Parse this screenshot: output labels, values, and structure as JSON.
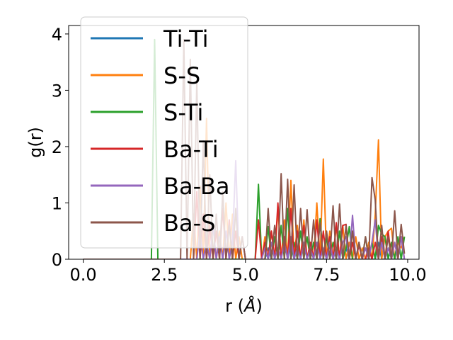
{
  "chart_data": {
    "type": "line",
    "title": "",
    "xlabel_prefix": "r (",
    "xlabel_symbol": "Å",
    "xlabel_suffix": ")",
    "ylabel": "g(r)",
    "xlim": [
      -0.45,
      10.35
    ],
    "ylim": [
      0,
      4.15
    ],
    "xticks": [
      0,
      2.5,
      5,
      7.5,
      10
    ],
    "xtick_labels": [
      "0.0",
      "2.5",
      "5.0",
      "7.5",
      "10.0"
    ],
    "yticks": [
      0,
      1,
      2,
      3,
      4
    ],
    "ytick_labels": [
      "0",
      "1",
      "2",
      "3",
      "4"
    ],
    "grid": false,
    "legend_position": "upper-left",
    "series": [
      {
        "name": "Ti-Ti",
        "color": "#1f77b4",
        "x": [
          0,
          5.4,
          5.6,
          5.7,
          5.8,
          6.3,
          6.4,
          6.5,
          7.5,
          7.6,
          7.7,
          8.0,
          8.1,
          8.2,
          9.0,
          9.1,
          9.2,
          9.9
        ],
        "y": [
          0,
          0,
          0,
          0.2,
          0,
          0,
          0.3,
          0,
          0,
          0.25,
          0,
          0,
          0.2,
          0,
          0,
          0.3,
          0,
          0
        ]
      },
      {
        "name": "S-S",
        "color": "#ff7f0e",
        "x": [
          0,
          3.3,
          3.4,
          3.5,
          3.6,
          3.7,
          3.8,
          3.9,
          4.0,
          4.1,
          4.2,
          4.3,
          4.4,
          4.5,
          4.6,
          4.7,
          4.8,
          4.9,
          5.0,
          5.5,
          5.6,
          5.7,
          5.8,
          5.9,
          6.0,
          6.1,
          6.2,
          6.3,
          6.4,
          6.5,
          6.6,
          6.7,
          6.8,
          6.9,
          7.0,
          7.1,
          7.2,
          7.3,
          7.4,
          7.5,
          7.6,
          7.7,
          7.8,
          7.9,
          8.0,
          8.1,
          8.2,
          8.3,
          8.4,
          8.5,
          8.6,
          8.7,
          8.8,
          8.9,
          9.0,
          9.1,
          9.2,
          9.3,
          9.4,
          9.5,
          9.6,
          9.7,
          9.8,
          9.9
        ],
        "y": [
          0,
          0,
          0.8,
          0,
          1.3,
          0,
          2.5,
          0,
          0.6,
          0,
          0.5,
          0,
          1.0,
          0,
          0.8,
          0,
          0.4,
          0,
          0,
          0,
          0.4,
          0,
          0.5,
          0,
          0.9,
          0,
          0.7,
          0,
          1.4,
          0,
          0.6,
          0,
          0.7,
          0,
          0.3,
          0,
          1.0,
          0,
          1.78,
          0,
          0.5,
          0,
          0.6,
          0,
          0.6,
          0,
          0.3,
          0,
          0.4,
          0,
          0.2,
          0,
          0.3,
          0,
          0.8,
          2.12,
          0,
          0.4,
          0.5,
          0.55,
          0,
          0.3,
          0.2,
          0.4
        ]
      },
      {
        "name": "S-Ti",
        "color": "#2ca02c",
        "x": [
          0,
          2.1,
          2.2,
          2.3,
          2.4,
          5.3,
          5.4,
          5.5,
          5.6,
          5.7,
          5.8,
          5.9,
          6.0,
          6.1,
          6.2,
          6.3,
          6.4,
          6.5,
          6.6,
          6.7,
          6.8,
          6.9,
          7.0,
          7.1,
          7.2,
          7.3,
          7.4,
          7.5,
          7.6,
          7.7,
          7.8,
          7.9,
          8.0,
          8.1,
          8.2,
          8.3,
          8.4,
          8.5,
          8.6,
          8.7,
          8.8,
          8.9,
          9.0,
          9.1,
          9.2,
          9.3,
          9.4,
          9.5,
          9.6,
          9.7,
          9.8,
          9.9
        ],
        "y": [
          0,
          0,
          3.9,
          0,
          0,
          0,
          1.33,
          0,
          0,
          0.58,
          0,
          0.4,
          0,
          0.6,
          0,
          0.9,
          0,
          0.3,
          0,
          0.5,
          0,
          0.4,
          0,
          0.3,
          0,
          0.72,
          0,
          0.4,
          0,
          0.3,
          0,
          0.5,
          0,
          0.2,
          0.58,
          0,
          0,
          0.3,
          0,
          0.4,
          0,
          0.3,
          0,
          0.6,
          0.45,
          0.4,
          0,
          0.3,
          0,
          0.4,
          0,
          0.4
        ]
      },
      {
        "name": "Ba-Ti",
        "color": "#d62728",
        "x": [
          0,
          3.4,
          3.5,
          3.6,
          3.7,
          3.8,
          3.9,
          4.0,
          4.1,
          4.2,
          4.3,
          4.4,
          4.5,
          4.6,
          4.7,
          4.8,
          4.9,
          5.0,
          5.3,
          5.4,
          5.5,
          5.6,
          5.7,
          5.8,
          5.9,
          6.0,
          6.1,
          6.2,
          6.3,
          6.4,
          6.5,
          6.6,
          6.7,
          6.8,
          6.9,
          7.0,
          7.1,
          7.2,
          7.3,
          7.4,
          7.5,
          7.6,
          7.7,
          7.8,
          7.9,
          8.0,
          8.1,
          8.2,
          8.3,
          8.4,
          8.5,
          8.6,
          8.7,
          8.8,
          8.9,
          9.0,
          9.1,
          9.2,
          9.3,
          9.4,
          9.5,
          9.6,
          9.7,
          9.8,
          9.9
        ],
        "y": [
          0,
          0,
          1.2,
          0,
          0.8,
          0,
          0.6,
          0,
          0.5,
          0,
          0.9,
          0,
          0.7,
          0,
          0.5,
          0,
          0.4,
          0,
          0,
          0.7,
          0,
          0.3,
          0,
          0.5,
          0,
          1.0,
          0,
          0.4,
          0,
          0.9,
          0,
          0.5,
          0,
          0.6,
          0,
          0.3,
          0,
          0.7,
          0,
          0.5,
          0,
          0.4,
          0,
          0.65,
          0,
          0.6,
          0.62,
          0,
          0.3,
          0,
          0.25,
          0,
          0,
          0.2,
          0,
          0.3,
          0,
          0.4,
          0,
          0.5,
          0,
          0.3,
          0,
          0.4,
          0
        ]
      },
      {
        "name": "Ba-Ba",
        "color": "#9467bd",
        "x": [
          0,
          3.5,
          3.6,
          3.7,
          3.8,
          3.9,
          4.0,
          4.1,
          4.2,
          4.3,
          4.4,
          4.5,
          4.6,
          4.7,
          4.8,
          4.9,
          5.0,
          5.5,
          5.6,
          5.7,
          5.8,
          5.9,
          6.0,
          6.1,
          6.2,
          6.3,
          6.4,
          6.5,
          6.6,
          6.7,
          6.8,
          6.9,
          7.0,
          7.1,
          7.2,
          7.3,
          7.4,
          7.5,
          7.6,
          7.7,
          7.8,
          7.9,
          8.0,
          8.1,
          8.2,
          8.3,
          8.4,
          8.5,
          8.6,
          8.7,
          8.8,
          8.9,
          9.0,
          9.1,
          9.2,
          9.3,
          9.4,
          9.5,
          9.6,
          9.7,
          9.8,
          9.9
        ],
        "y": [
          0,
          0,
          0.5,
          0,
          0.3,
          0,
          0.6,
          0,
          0.4,
          0,
          0.5,
          0,
          0.3,
          1.75,
          0,
          0.4,
          0,
          0,
          0.2,
          0,
          0.3,
          0,
          0.2,
          0,
          0.3,
          0,
          0.4,
          0,
          0.2,
          0,
          0.3,
          0,
          0.2,
          0,
          0.3,
          0,
          0.2,
          0,
          0.3,
          0,
          0.2,
          0,
          0.3,
          0.4,
          0,
          0.78,
          0,
          0.3,
          0,
          0.2,
          0,
          0.3,
          0.7,
          0,
          0.3,
          0,
          0.2,
          0,
          0.3,
          0,
          0.4,
          0
        ]
      },
      {
        "name": "Ba-S",
        "color": "#8c564b",
        "x": [
          0,
          3.0,
          3.1,
          3.2,
          3.3,
          3.4,
          3.5,
          3.6,
          3.7,
          3.8,
          3.9,
          4.0,
          4.1,
          4.2,
          4.3,
          4.4,
          4.5,
          4.6,
          4.7,
          4.8,
          4.9,
          5.0,
          5.6,
          5.7,
          5.8,
          5.9,
          6.0,
          6.1,
          6.2,
          6.3,
          6.4,
          6.5,
          6.6,
          6.7,
          6.8,
          6.9,
          7.0,
          7.1,
          7.2,
          7.3,
          7.4,
          7.5,
          7.6,
          7.7,
          7.8,
          7.9,
          8.0,
          8.1,
          8.2,
          8.3,
          8.4,
          8.5,
          8.6,
          8.7,
          8.8,
          8.9,
          9.0,
          9.1,
          9.2,
          9.3,
          9.4,
          9.5,
          9.6,
          9.7,
          9.8,
          9.9
        ],
        "y": [
          0,
          0,
          3.9,
          0,
          3.55,
          0,
          3.18,
          0,
          2.1,
          0,
          1.5,
          0,
          0.8,
          0,
          1.2,
          0,
          0.6,
          0,
          0.9,
          0,
          0.4,
          0,
          0,
          0.9,
          0,
          0.6,
          0,
          1.52,
          0,
          1.42,
          0,
          1.32,
          0,
          0.9,
          0,
          0.88,
          0,
          0.7,
          0,
          0.65,
          0,
          0.5,
          0,
          0.95,
          0,
          0.98,
          0,
          0.6,
          0,
          0.5,
          0,
          0.3,
          0,
          0.4,
          0,
          1.45,
          1.05,
          0,
          0.6,
          0,
          0.4,
          0,
          0.86,
          0,
          0.62,
          0.1
        ]
      }
    ]
  }
}
